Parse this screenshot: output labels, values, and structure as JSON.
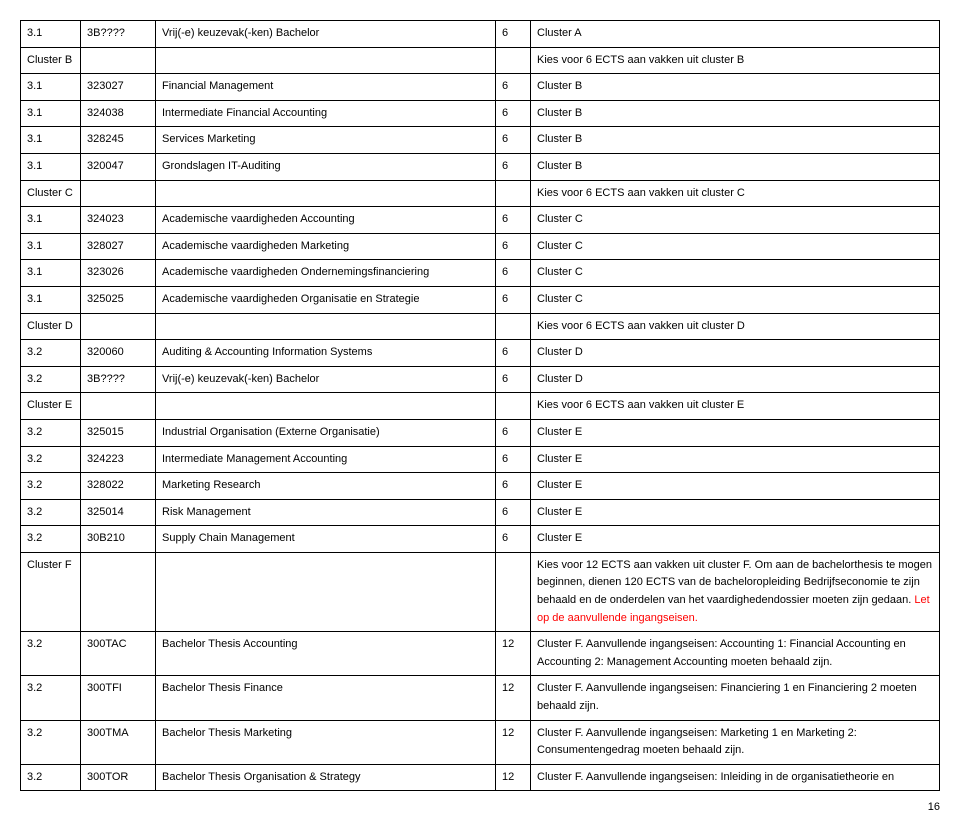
{
  "rows": [
    {
      "c1": "3.1",
      "c2": "3B????",
      "c3": "Vrij(-e) keuzevak(-ken) Bachelor",
      "c4": "6",
      "c5": "Cluster A"
    },
    {
      "c1": "Cluster B",
      "c2": "",
      "c3": "",
      "c4": "",
      "c5": "Kies voor 6 ECTS aan vakken uit cluster B"
    },
    {
      "c1": "3.1",
      "c2": "323027",
      "c3": "Financial Management",
      "c4": "6",
      "c5": "Cluster B"
    },
    {
      "c1": "3.1",
      "c2": "324038",
      "c3": "Intermediate Financial Accounting",
      "c4": "6",
      "c5": "Cluster B"
    },
    {
      "c1": "3.1",
      "c2": "328245",
      "c3": "Services Marketing",
      "c4": "6",
      "c5": "Cluster B"
    },
    {
      "c1": "3.1",
      "c2": "320047",
      "c3": "Grondslagen IT-Auditing",
      "c4": "6",
      "c5": "Cluster B"
    },
    {
      "c1": "Cluster C",
      "c2": "",
      "c3": "",
      "c4": "",
      "c5": "Kies voor 6 ECTS aan vakken uit cluster C"
    },
    {
      "c1": "3.1",
      "c2": "324023",
      "c3": "Academische vaardigheden Accounting",
      "c4": "6",
      "c5": "Cluster C"
    },
    {
      "c1": "3.1",
      "c2": "328027",
      "c3": "Academische vaardigheden Marketing",
      "c4": "6",
      "c5": "Cluster C"
    },
    {
      "c1": "3.1",
      "c2": "323026",
      "c3": "Academische vaardigheden Ondernemingsfinanciering",
      "c4": "6",
      "c5": "Cluster C"
    },
    {
      "c1": "3.1",
      "c2": "325025",
      "c3": "Academische vaardigheden Organisatie en Strategie",
      "c4": "6",
      "c5": "Cluster C"
    },
    {
      "c1": "Cluster D",
      "c2": "",
      "c3": "",
      "c4": "",
      "c5": "Kies voor 6 ECTS aan vakken uit cluster D"
    },
    {
      "c1": "3.2",
      "c2": "320060",
      "c3": "Auditing & Accounting Information Systems",
      "c4": "6",
      "c5": "Cluster D"
    },
    {
      "c1": "3.2",
      "c2": "3B????",
      "c3": "Vrij(-e) keuzevak(-ken) Bachelor",
      "c4": "6",
      "c5": "Cluster D"
    },
    {
      "c1": "Cluster E",
      "c2": "",
      "c3": "",
      "c4": "",
      "c5": "Kies voor 6 ECTS aan vakken uit cluster E"
    },
    {
      "c1": "3.2",
      "c2": "325015",
      "c3": "Industrial Organisation (Externe Organisatie)",
      "c4": "6",
      "c5": "Cluster E"
    },
    {
      "c1": "3.2",
      "c2": "324223",
      "c3": "Intermediate Management Accounting",
      "c4": "6",
      "c5": "Cluster E"
    },
    {
      "c1": "3.2",
      "c2": "328022",
      "c3": "Marketing Research",
      "c4": "6",
      "c5": "Cluster E"
    },
    {
      "c1": "3.2",
      "c2": "325014",
      "c3": "Risk Management",
      "c4": "6",
      "c5": "Cluster E"
    },
    {
      "c1": "3.2",
      "c2": "30B210",
      "c3": "Supply Chain Management",
      "c4": "6",
      "c5": "Cluster E"
    },
    {
      "c1": "Cluster F",
      "c2": "",
      "c3": "",
      "c4": "",
      "c5": "Kies voor 12 ECTS aan vakken uit cluster F. Om aan de bachelorthesis te mogen beginnen, dienen 120 ECTS van de bacheloropleiding Bedrijfseconomie te zijn behaald en de onderdelen van het vaardighedendossier moeten zijn gedaan. ",
      "c5red": "Let op de aanvullende ingangseisen."
    },
    {
      "c1": "3.2",
      "c2": "300TAC",
      "c3": "Bachelor Thesis Accounting",
      "c4": "12",
      "c5": "Cluster F. Aanvullende ingangseisen: Accounting 1: Financial Accounting en Accounting 2: Management Accounting moeten behaald zijn."
    },
    {
      "c1": "3.2",
      "c2": "300TFI",
      "c3": "Bachelor Thesis Finance",
      "c4": "12",
      "c5": "Cluster F. Aanvullende ingangseisen: Financiering 1 en Financiering 2 moeten behaald zijn."
    },
    {
      "c1": "3.2",
      "c2": "300TMA",
      "c3": "Bachelor Thesis Marketing",
      "c4": "12",
      "c5": "Cluster F. Aanvullende ingangseisen: Marketing 1 en Marketing 2: Consumentengedrag moeten behaald zijn."
    },
    {
      "c1": "3.2",
      "c2": "300TOR",
      "c3": "Bachelor Thesis Organisation & Strategy",
      "c4": "12",
      "c5": "Cluster F. Aanvullende ingangseisen: Inleiding in de organisatietheorie en"
    }
  ],
  "pageNumber": "16"
}
